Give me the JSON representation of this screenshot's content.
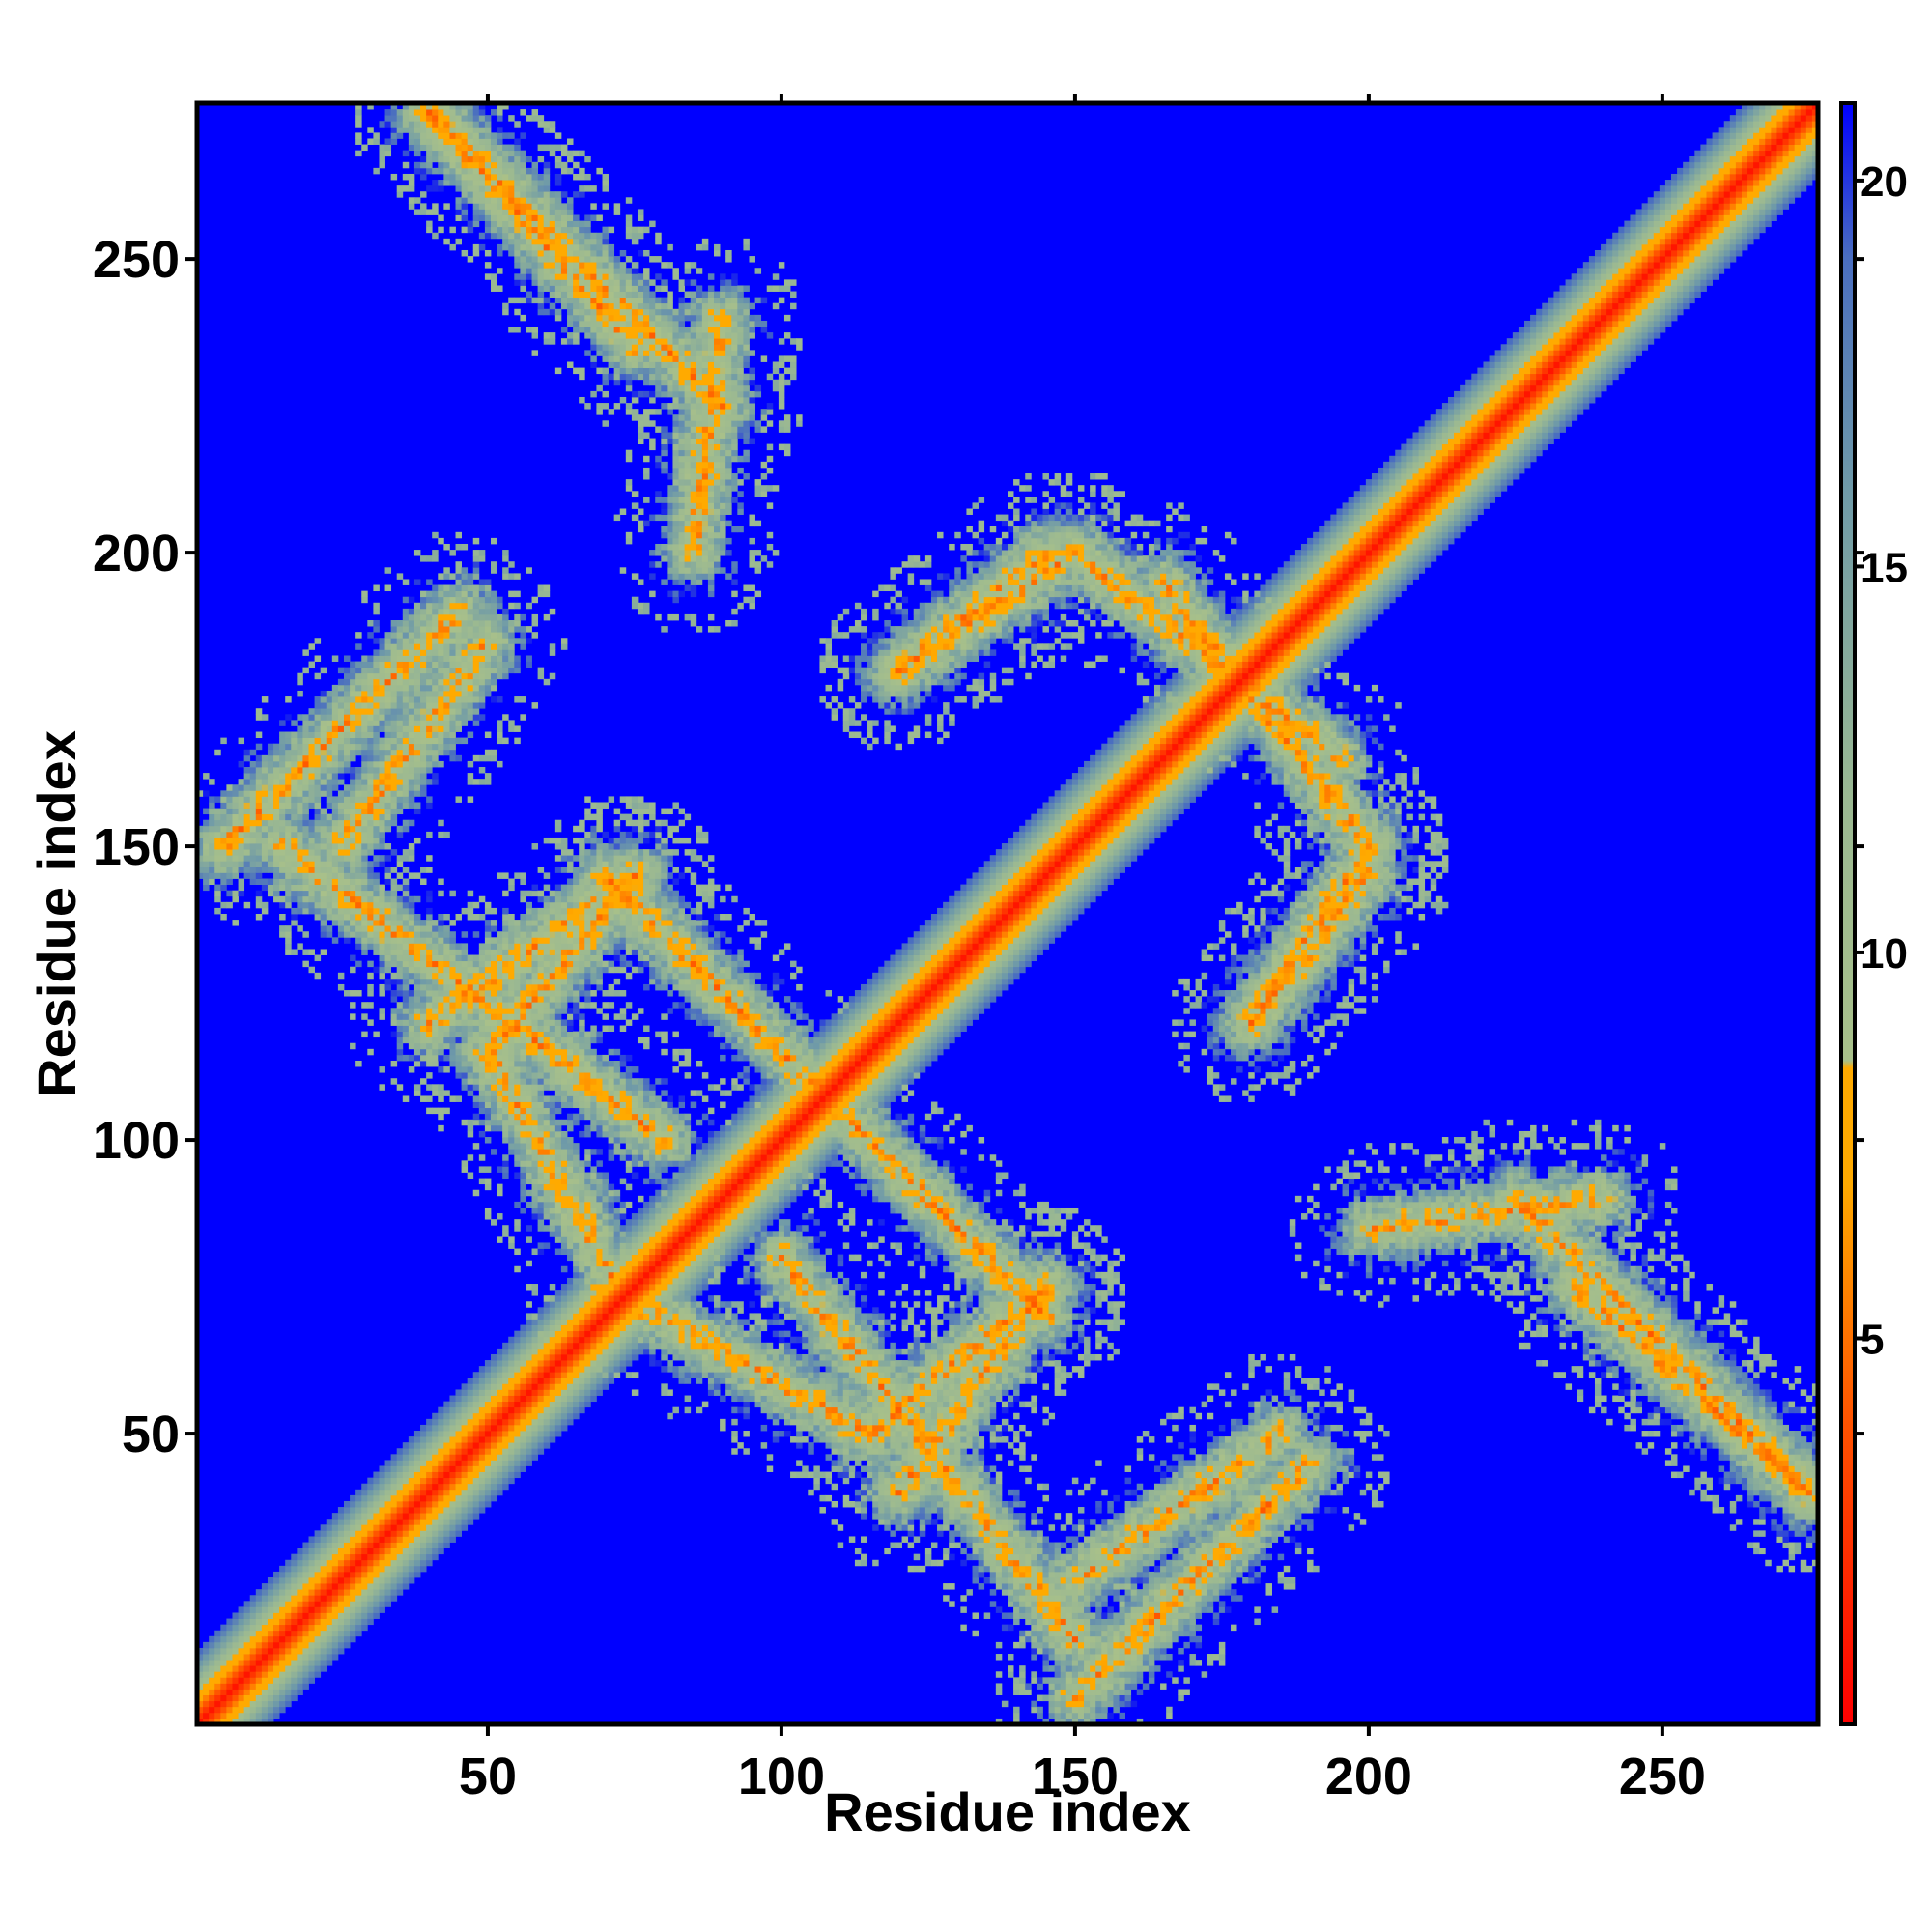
{
  "chart_data": {
    "type": "heatmap",
    "title": "",
    "xlabel": "Residue index",
    "ylabel": "Residue index",
    "xlim": [
      1,
      276
    ],
    "ylim": [
      1,
      276
    ],
    "x_ticks": [
      50,
      100,
      150,
      200,
      250
    ],
    "y_ticks": [
      50,
      100,
      150,
      200,
      250
    ],
    "x_tick_labels": [
      "50",
      "100",
      "150",
      "200",
      "250"
    ],
    "y_tick_labels": [
      "50",
      "100",
      "150",
      "200",
      "250"
    ],
    "colorbar": {
      "min": 0,
      "max": 21,
      "ticks": [
        5,
        10,
        15,
        20
      ],
      "tick_labels": [
        "5",
        "10",
        "15",
        "20"
      ],
      "stops": [
        {
          "value": 0,
          "color": "#ff0000"
        },
        {
          "value": 4,
          "color": "#ff5500"
        },
        {
          "value": 7,
          "color": "#ffaa00"
        },
        {
          "value": 8.5,
          "color": "#ffaa00"
        },
        {
          "value": 8.6,
          "color": "#a8c08a"
        },
        {
          "value": 12,
          "color": "#9ab892"
        },
        {
          "value": 16,
          "color": "#6f9aa8"
        },
        {
          "value": 19,
          "color": "#4a6ec0"
        },
        {
          "value": 21,
          "color": "#0000ff"
        }
      ]
    },
    "background_color": "#0000ff",
    "description_of_bands": [
      {
        "from": [
          1,
          1
        ],
        "to": [
          276,
          276
        ],
        "kind": "main-diagonal"
      },
      {
        "from": [
          40,
          275
        ],
        "to": [
          90,
          225
        ],
        "kind": "antiparallel"
      },
      {
        "from": [
          5,
          150
        ],
        "to": [
          45,
          190
        ],
        "kind": "parallel"
      },
      {
        "from": [
          100,
          80
        ],
        "to": [
          150,
          15
        ],
        "kind": "parallel"
      },
      {
        "from": [
          70,
          145
        ],
        "to": [
          120,
          95
        ],
        "kind": "antiparallel"
      },
      {
        "from": [
          40,
          120
        ],
        "to": [
          75,
          145
        ],
        "kind": "parallel"
      },
      {
        "from": [
          70,
          75
        ],
        "to": [
          115,
          50
        ],
        "kind": "antiparallel"
      },
      {
        "from": [
          115,
          50
        ],
        "to": [
          145,
          75
        ],
        "kind": "parallel"
      },
      {
        "from": [
          120,
          180
        ],
        "to": [
          145,
          200
        ],
        "kind": "parallel"
      },
      {
        "from": [
          150,
          200
        ],
        "to": [
          195,
          165
        ],
        "kind": "antiparallel"
      },
      {
        "from": [
          180,
          120
        ],
        "to": [
          200,
          150
        ],
        "kind": "parallel"
      },
      {
        "from": [
          235,
          75
        ],
        "to": [
          275,
          40
        ],
        "kind": "antiparallel"
      },
      {
        "from": [
          150,
          25
        ],
        "to": [
          185,
          50
        ],
        "kind": "parallel"
      },
      {
        "from": [
          200,
          85
        ],
        "to": [
          240,
          90
        ],
        "kind": "parallel"
      }
    ]
  }
}
